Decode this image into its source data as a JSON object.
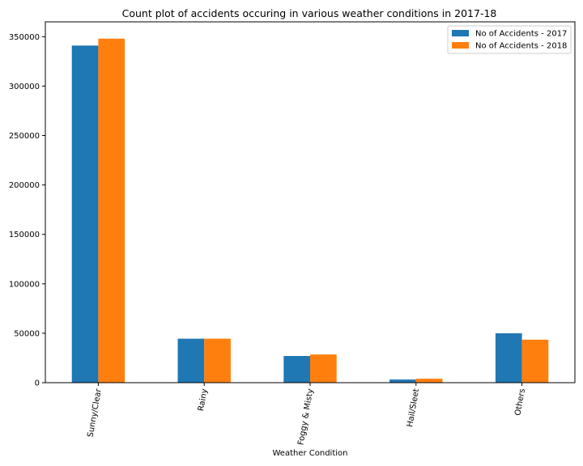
{
  "chart_data": {
    "type": "bar",
    "title": "Count plot of accidents occuring in various weather conditions in 2017-18",
    "xlabel": "Weather Condition",
    "ylabel": "",
    "categories": [
      "Sunny/Clear",
      "Rainy",
      "Foggy & Misty",
      "Hail/Sleet",
      "Others"
    ],
    "series": [
      {
        "name": "No of Accidents - 2017",
        "color": "#1f77b4",
        "values": [
          341000,
          44500,
          27000,
          3200,
          50000
        ]
      },
      {
        "name": "No of Accidents - 2018",
        "color": "#ff7f0e",
        "values": [
          348000,
          44500,
          28500,
          4000,
          43500
        ]
      }
    ],
    "ylim": [
      0,
      365000
    ],
    "yticks": [
      0,
      50000,
      100000,
      150000,
      200000,
      250000,
      300000,
      350000
    ],
    "ytick_labels": [
      "0",
      "50000",
      "100000",
      "150000",
      "200000",
      "250000",
      "300000",
      "350000"
    ],
    "legend_position": "top-right",
    "grid": false
  }
}
